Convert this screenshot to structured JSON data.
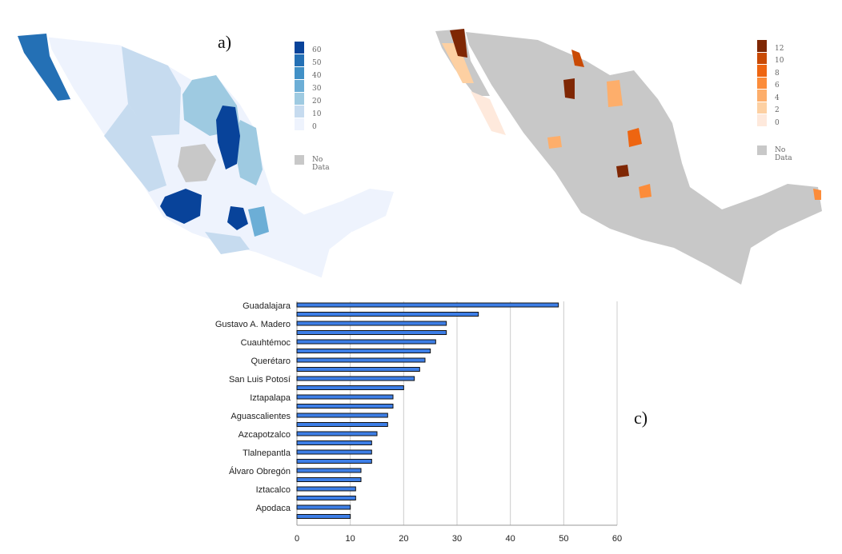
{
  "panels": {
    "a": "a)",
    "c": "c)"
  },
  "map_a": {
    "legend_labels": [
      "60",
      "50",
      "40",
      "30",
      "20",
      "10",
      "0"
    ],
    "legend_colors": [
      "#08439a",
      "#2470b5",
      "#4190c6",
      "#6caed6",
      "#9ecae1",
      "#c6dbef",
      "#eef3fd"
    ],
    "no_data_label": "No Data",
    "no_data_color": "#c8c8c8"
  },
  "map_b": {
    "legend_labels": [
      "12",
      "10",
      "8",
      "6",
      "4",
      "2",
      "0"
    ],
    "legend_colors": [
      "#7f2704",
      "#c94a05",
      "#ee6511",
      "#fc8c3a",
      "#fdae6b",
      "#fdd0a2",
      "#fee9dc"
    ],
    "no_data_label": "No Data",
    "no_data_color": "#c8c8c8"
  },
  "chart_data": {
    "type": "bar",
    "orientation": "horizontal",
    "categories": [
      "Guadalajara",
      "",
      "Gustavo A. Madero",
      "",
      "Cuauhtémoc",
      "",
      "Querétaro",
      "",
      "San Luis Potosí",
      "",
      "Iztapalapa",
      "",
      "Aguascalientes",
      "",
      "Azcapotzalco",
      "",
      "Tlalnepantla",
      "",
      "Álvaro Obregón",
      "",
      "Iztacalco",
      "",
      "Apodaca",
      ""
    ],
    "values": [
      49,
      34,
      28,
      28,
      26,
      25,
      24,
      23,
      22,
      20,
      18,
      18,
      17,
      17,
      15,
      14,
      14,
      14,
      12,
      12,
      11,
      11,
      10,
      10
    ],
    "xlim": [
      0,
      60
    ],
    "xticks": [
      0,
      10,
      20,
      30,
      40,
      50,
      60
    ],
    "grid": true,
    "bar_color": "#3d7ee6",
    "title": "",
    "xlabel": "",
    "ylabel": ""
  }
}
